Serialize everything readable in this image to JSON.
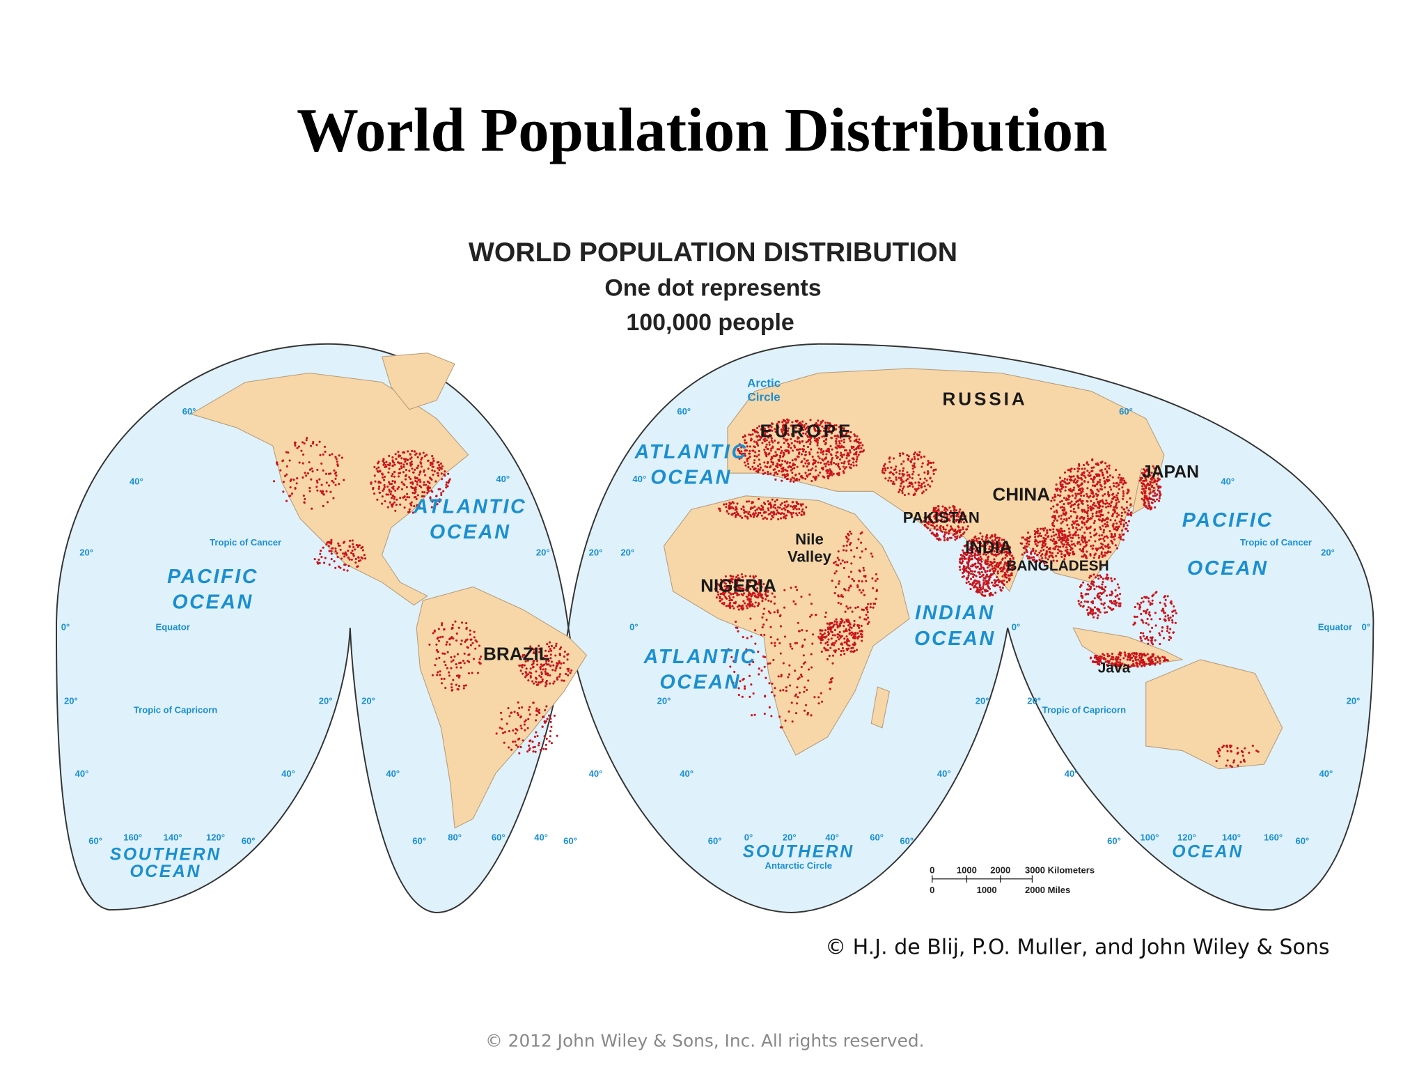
{
  "slide": {
    "title": "World Population Distribution",
    "footer": "© 2012 John Wiley & Sons, Inc. All rights reserved."
  },
  "map": {
    "title": "WORLD POPULATION DISTRIBUTION",
    "subtitle": [
      "One dot represents",
      "100,000 people"
    ],
    "regions": [
      {
        "lines": [
          "RUSSIA"
        ]
      },
      {
        "lines": [
          "EUROPE"
        ]
      },
      {
        "lines": [
          "JAPAN"
        ]
      },
      {
        "lines": [
          "CHINA"
        ]
      },
      {
        "lines": [
          "PAKISTAN"
        ]
      },
      {
        "lines": [
          "INDIA"
        ]
      },
      {
        "lines": [
          "BANGLADESH"
        ]
      },
      {
        "lines": [
          "NIGERIA"
        ]
      },
      {
        "lines": [
          "Nile",
          "Valley"
        ]
      },
      {
        "lines": [
          "BRAZIL"
        ]
      },
      {
        "lines": [
          "Java"
        ]
      }
    ],
    "oceans": [
      {
        "lines": [
          "ATLANTIC",
          "OCEAN"
        ]
      },
      {
        "lines": [
          "PACIFIC",
          "OCEAN"
        ]
      },
      {
        "lines": [
          "ATLANTIC",
          "OCEAN"
        ]
      },
      {
        "lines": [
          "ATLANTIC",
          "OCEAN"
        ]
      },
      {
        "lines": [
          "INDIAN",
          "OCEAN"
        ]
      },
      {
        "lines": [
          "PACIFIC",
          "OCEAN"
        ]
      },
      {
        "lines": [
          "SOUTHERN",
          "OCEAN"
        ]
      },
      {
        "lines": [
          "SOUTHERN"
        ]
      },
      {
        "lines": [
          "OCEAN"
        ]
      }
    ],
    "circles": [
      {
        "lines": [
          "Arctic",
          "Circle"
        ]
      },
      {
        "lines": [
          "Tropic of Cancer"
        ]
      },
      {
        "lines": [
          "Tropic of Cancer"
        ]
      },
      {
        "lines": [
          "Equator"
        ]
      },
      {
        "lines": [
          "Equator"
        ]
      },
      {
        "lines": [
          "Tropic of Capricorn"
        ]
      },
      {
        "lines": [
          "Tropic of Capricorn"
        ]
      },
      {
        "lines": [
          "Antarctic Circle"
        ]
      }
    ],
    "degrees": [
      "60°",
      "40°",
      "20°",
      "0°",
      "160°",
      "140°",
      "120°",
      "100°",
      "80°"
    ],
    "scale": {
      "km": [
        "0",
        "1000",
        "2000",
        "3000 Kilometers"
      ],
      "miles": [
        "0",
        "1000",
        "2000 Miles"
      ]
    },
    "credit": "© H.J. de Blij, P.O. Muller, and John Wiley & Sons"
  }
}
